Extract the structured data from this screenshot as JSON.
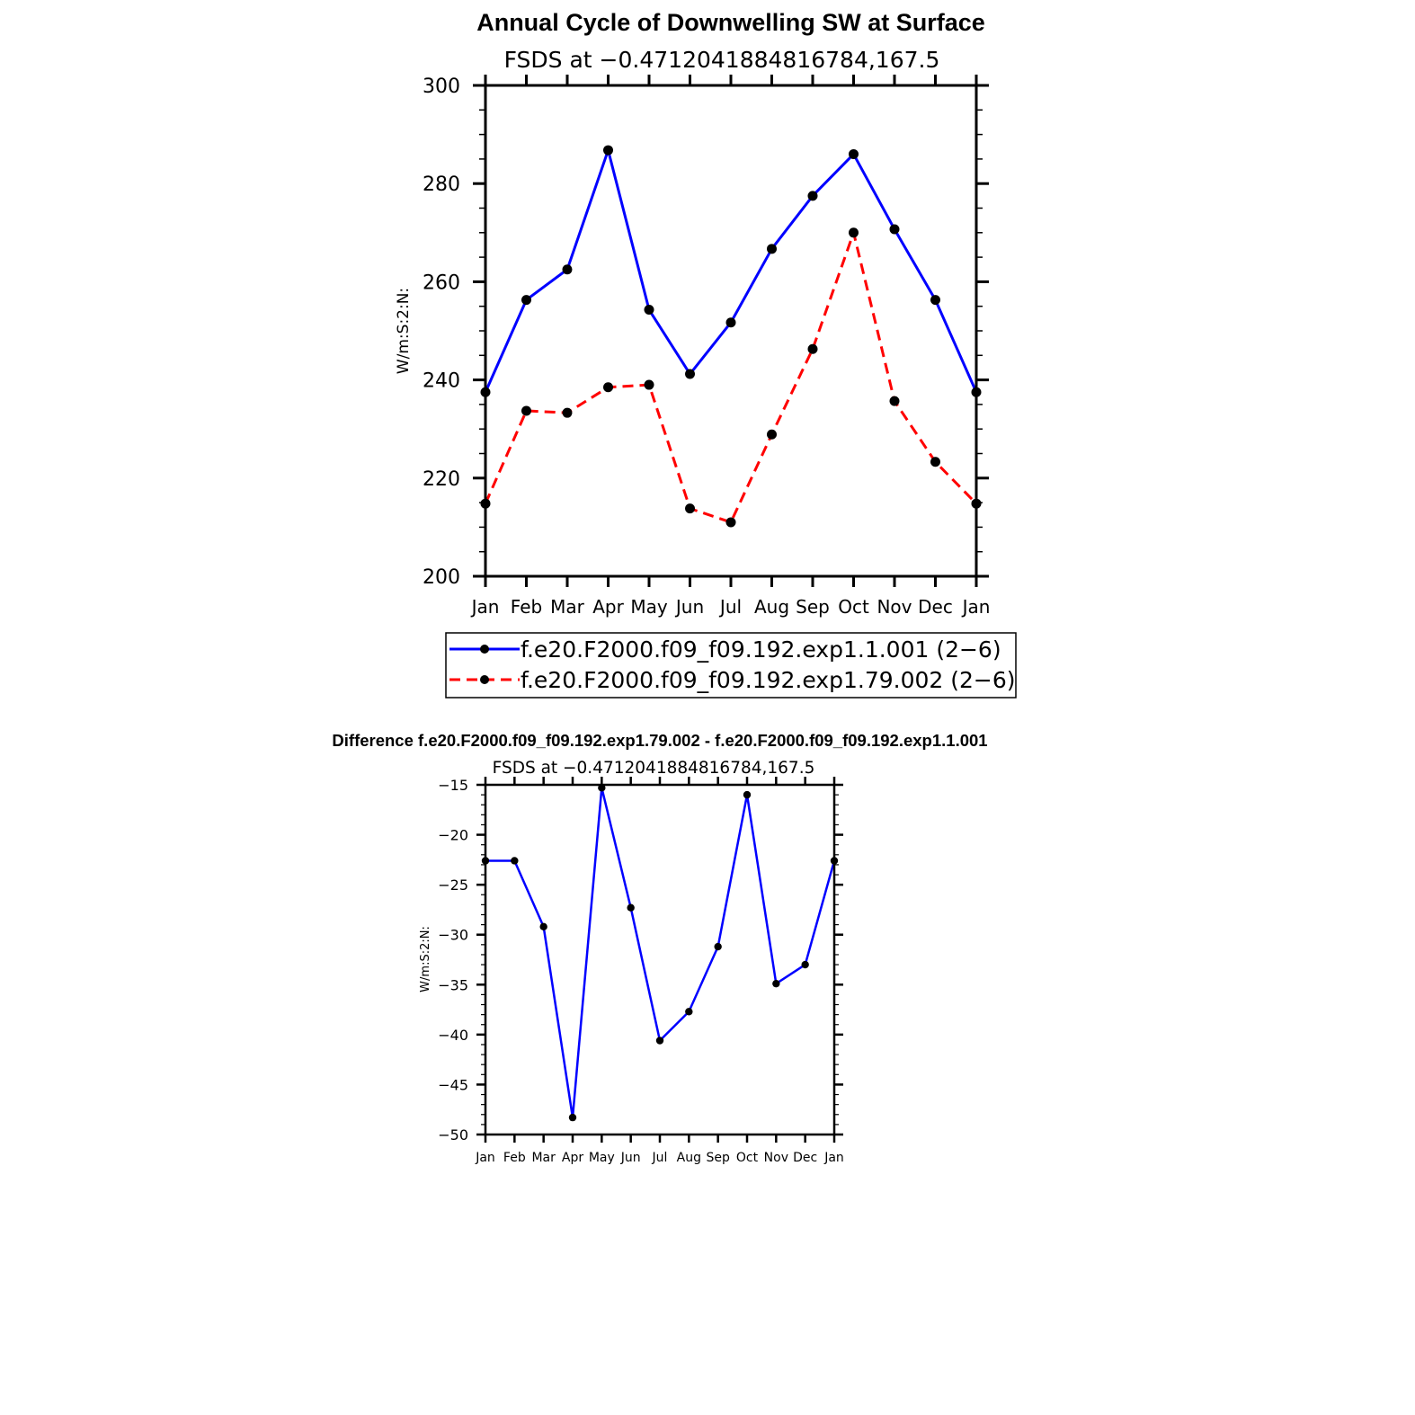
{
  "chart_data": [
    {
      "type": "line",
      "title": "Annual Cycle of Downwelling SW at Surface",
      "subtitle": "FSDS at −0.4712041884816784,167.5",
      "ylabel": "W/m:S:2:N:",
      "xlabel": "",
      "categories": [
        "Jan",
        "Feb",
        "Mar",
        "Apr",
        "May",
        "Jun",
        "Jul",
        "Aug",
        "Sep",
        "Oct",
        "Nov",
        "Dec",
        "Jan"
      ],
      "ylim": [
        200,
        300
      ],
      "yticks": [
        "200",
        "220",
        "240",
        "260",
        "280",
        "300"
      ],
      "grid": false,
      "legend_position": "bottom",
      "series": [
        {
          "name": "f.e20.F2000.f09_f09.192.exp1.1.001 (2−6)",
          "color": "#0000ff",
          "dash": "solid",
          "values": [
            237.5,
            256.3,
            262.5,
            286.8,
            254.3,
            241.2,
            251.7,
            266.7,
            277.5,
            286.0,
            270.7,
            256.3,
            237.5
          ]
        },
        {
          "name": "f.e20.F2000.f09_f09.192.exp1.79.002 (2−6)",
          "color": "#ff0000",
          "dash": "dashed",
          "values": [
            214.8,
            233.7,
            233.3,
            238.5,
            239.0,
            213.8,
            211.0,
            228.9,
            246.3,
            270.0,
            235.7,
            223.3,
            214.8
          ]
        }
      ]
    },
    {
      "type": "line",
      "title": "Difference f.e20.F2000.f09_f09.192.exp1.79.002 - f.e20.F2000.f09_f09.192.exp1.1.001",
      "subtitle": "FSDS at −0.4712041884816784,167.5",
      "ylabel": "W/m:S:2:N:",
      "xlabel": "",
      "categories": [
        "Jan",
        "Feb",
        "Mar",
        "Apr",
        "May",
        "Jun",
        "Jul",
        "Aug",
        "Sep",
        "Oct",
        "Nov",
        "Dec",
        "Jan"
      ],
      "ylim": [
        -50,
        -15
      ],
      "yticks": [
        "−15",
        "−20",
        "−25",
        "−30",
        "−35",
        "−40",
        "−45",
        "−50"
      ],
      "ytick_values": [
        -15,
        -20,
        -25,
        -30,
        -35,
        -40,
        -45,
        -50
      ],
      "grid": false,
      "series": [
        {
          "color": "#0000ff",
          "dash": "solid",
          "values": [
            -22.6,
            -22.6,
            -29.2,
            -48.3,
            -15.3,
            -27.3,
            -40.6,
            -37.7,
            -31.2,
            -16.0,
            -34.9,
            -33.0,
            -22.6
          ]
        }
      ]
    }
  ]
}
